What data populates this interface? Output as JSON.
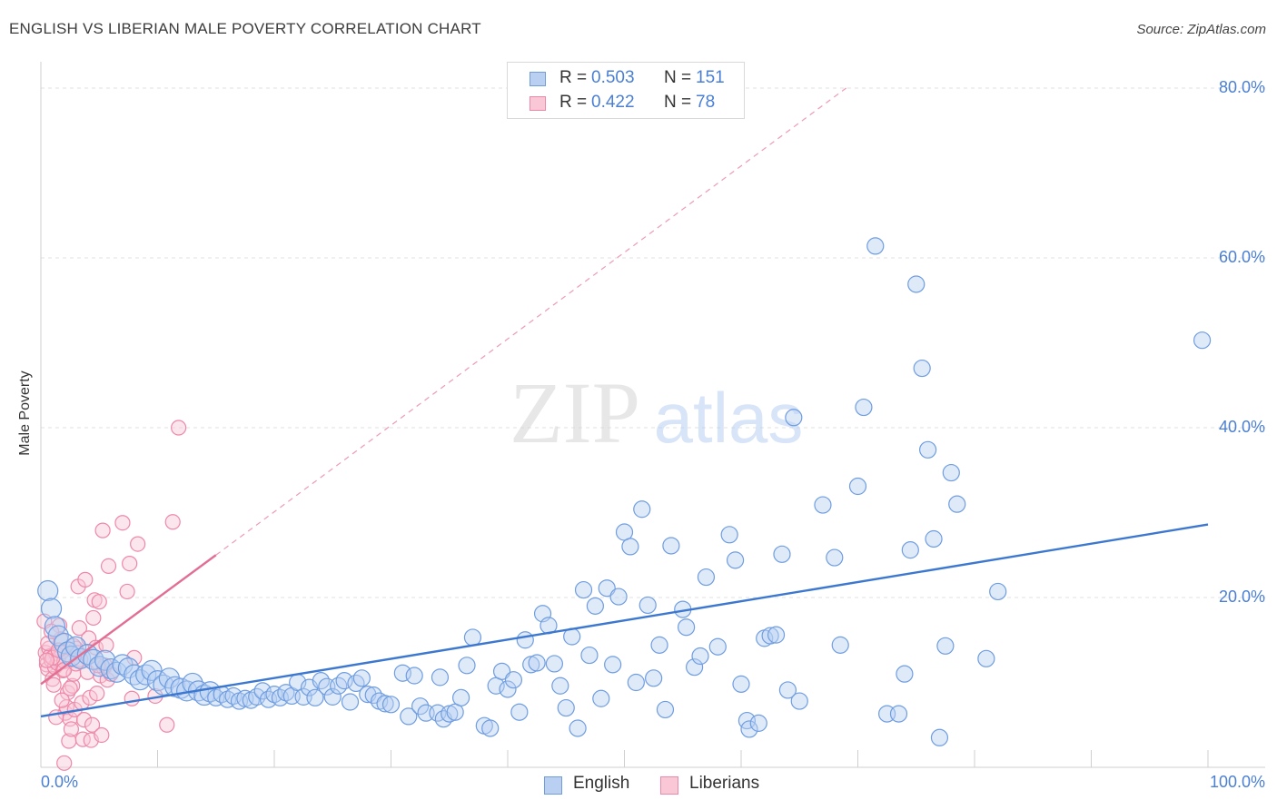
{
  "title": "ENGLISH VS LIBERIAN MALE POVERTY CORRELATION CHART",
  "source": "Source: ZipAtlas.com",
  "watermark": {
    "zip": "ZIP",
    "atlas": "atlas"
  },
  "stats": [
    {
      "label": "R =",
      "r": "0.503",
      "n_label": "N =",
      "n": "151",
      "color": "#6f9de0",
      "fill": "#b9d0f2"
    },
    {
      "label": "R =",
      "r": "0.422",
      "n_label": "N =",
      "n": "78",
      "color": "#ee88a8",
      "fill": "#f9c7d6"
    }
  ],
  "legend": [
    {
      "label": "English",
      "color": "#6f9de0",
      "fill": "#b9d0f2"
    },
    {
      "label": "Liberians",
      "color": "#ee88a8",
      "fill": "#f9c7d6"
    }
  ],
  "chart_data": {
    "type": "scatter",
    "title": "ENGLISH VS LIBERIAN MALE POVERTY CORRELATION CHART",
    "xlabel": "",
    "ylabel": "Male Poverty",
    "xlim": [
      0,
      100
    ],
    "ylim": [
      0,
      80
    ],
    "x_tick_labels": [
      {
        "value": 0,
        "label": "0.0%"
      },
      {
        "value": 100,
        "label": "100.0%"
      }
    ],
    "y_tick_labels": [
      {
        "value": 20,
        "label": "20.0%"
      },
      {
        "value": 40,
        "label": "40.0%"
      },
      {
        "value": 60,
        "label": "60.0%"
      },
      {
        "value": 80,
        "label": "80.0%"
      }
    ],
    "grid": "horizontal dashed",
    "series": [
      {
        "name": "English",
        "color": "#4a7fd4",
        "fill": "#b9d0f2",
        "trend": {
          "x": [
            0,
            100
          ],
          "y": [
            6.0,
            28.6
          ]
        },
        "points": [
          [
            0.6,
            20.8
          ],
          [
            0.9,
            18.7
          ],
          [
            1.2,
            16.6
          ],
          [
            1.5,
            15.5
          ],
          [
            2.0,
            14.6
          ],
          [
            2.3,
            13.6
          ],
          [
            2.6,
            13.1
          ],
          [
            3.0,
            14.2
          ],
          [
            3.4,
            12.8
          ],
          [
            4.0,
            13.3
          ],
          [
            4.5,
            12.7
          ],
          [
            5.0,
            11.9
          ],
          [
            5.5,
            12.6
          ],
          [
            6.0,
            11.6
          ],
          [
            6.5,
            11.2
          ],
          [
            7.0,
            12.1
          ],
          [
            7.5,
            11.7
          ],
          [
            8.0,
            10.9
          ],
          [
            8.5,
            10.3
          ],
          [
            9.0,
            10.9
          ],
          [
            9.5,
            11.4
          ],
          [
            10.0,
            10.2
          ],
          [
            10.5,
            9.7
          ],
          [
            11.0,
            10.5
          ],
          [
            11.5,
            9.5
          ],
          [
            12.0,
            9.3
          ],
          [
            12.5,
            9.0
          ],
          [
            13.0,
            9.9
          ],
          [
            13.5,
            9.0
          ],
          [
            14.0,
            8.5
          ],
          [
            14.5,
            8.9
          ],
          [
            15.0,
            8.2
          ],
          [
            15.5,
            8.6
          ],
          [
            16.0,
            8.0
          ],
          [
            16.5,
            8.4
          ],
          [
            17.0,
            7.8
          ],
          [
            17.5,
            8.1
          ],
          [
            18.0,
            7.9
          ],
          [
            18.5,
            8.3
          ],
          [
            19.0,
            9.0
          ],
          [
            19.5,
            8.0
          ],
          [
            20.0,
            8.6
          ],
          [
            20.5,
            8.2
          ],
          [
            21.0,
            8.8
          ],
          [
            21.5,
            8.4
          ],
          [
            22.0,
            10.0
          ],
          [
            22.5,
            8.3
          ],
          [
            23.0,
            9.4
          ],
          [
            23.5,
            8.2
          ],
          [
            24.0,
            10.2
          ],
          [
            24.5,
            9.5
          ],
          [
            25.0,
            8.3
          ],
          [
            25.5,
            9.6
          ],
          [
            26.0,
            10.2
          ],
          [
            26.5,
            7.7
          ],
          [
            27.0,
            9.9
          ],
          [
            27.5,
            10.5
          ],
          [
            28.0,
            8.6
          ],
          [
            28.5,
            8.5
          ],
          [
            29.0,
            7.8
          ],
          [
            29.5,
            7.5
          ],
          [
            30.0,
            7.4
          ],
          [
            31.0,
            11.1
          ],
          [
            31.5,
            6.0
          ],
          [
            32.0,
            10.8
          ],
          [
            32.5,
            7.2
          ],
          [
            33.0,
            6.4
          ],
          [
            34.0,
            6.4
          ],
          [
            34.2,
            10.6
          ],
          [
            34.5,
            5.7
          ],
          [
            35.0,
            6.3
          ],
          [
            35.5,
            6.5
          ],
          [
            36.0,
            8.2
          ],
          [
            36.5,
            12.0
          ],
          [
            37.0,
            15.3
          ],
          [
            38.0,
            4.9
          ],
          [
            38.5,
            4.6
          ],
          [
            39.0,
            9.6
          ],
          [
            39.5,
            11.3
          ],
          [
            40.0,
            9.2
          ],
          [
            40.5,
            10.3
          ],
          [
            41.0,
            6.5
          ],
          [
            41.5,
            15.0
          ],
          [
            42.0,
            12.1
          ],
          [
            42.5,
            12.3
          ],
          [
            43.0,
            18.1
          ],
          [
            43.5,
            16.7
          ],
          [
            44.0,
            12.2
          ],
          [
            44.5,
            9.6
          ],
          [
            45.0,
            7.0
          ],
          [
            45.5,
            15.4
          ],
          [
            46.0,
            4.6
          ],
          [
            46.5,
            20.9
          ],
          [
            47.0,
            13.2
          ],
          [
            47.5,
            19.0
          ],
          [
            48.0,
            8.1
          ],
          [
            48.5,
            21.1
          ],
          [
            49.0,
            12.1
          ],
          [
            49.5,
            20.1
          ],
          [
            50.0,
            27.7
          ],
          [
            50.5,
            26.0
          ],
          [
            51.0,
            10.0
          ],
          [
            51.5,
            30.4
          ],
          [
            52.0,
            19.1
          ],
          [
            52.5,
            10.5
          ],
          [
            53.0,
            14.4
          ],
          [
            53.5,
            6.8
          ],
          [
            54.0,
            26.1
          ],
          [
            55.0,
            18.6
          ],
          [
            55.3,
            16.5
          ],
          [
            56.0,
            11.8
          ],
          [
            56.5,
            13.1
          ],
          [
            57.0,
            22.4
          ],
          [
            58.0,
            14.2
          ],
          [
            59.0,
            27.4
          ],
          [
            59.5,
            24.4
          ],
          [
            60.0,
            9.8
          ],
          [
            60.5,
            5.5
          ],
          [
            60.7,
            4.5
          ],
          [
            61.5,
            5.2
          ],
          [
            62.0,
            15.2
          ],
          [
            62.5,
            15.5
          ],
          [
            63.0,
            15.6
          ],
          [
            63.5,
            25.1
          ],
          [
            64.0,
            9.1
          ],
          [
            64.5,
            41.2
          ],
          [
            65.0,
            7.8
          ],
          [
            67.0,
            30.9
          ],
          [
            68.0,
            24.7
          ],
          [
            68.5,
            14.4
          ],
          [
            70.0,
            33.1
          ],
          [
            70.5,
            42.4
          ],
          [
            71.5,
            61.4
          ],
          [
            72.5,
            6.3
          ],
          [
            73.5,
            6.3
          ],
          [
            74.0,
            11.0
          ],
          [
            74.5,
            25.6
          ],
          [
            75.0,
            56.9
          ],
          [
            75.5,
            47.0
          ],
          [
            76.0,
            37.4
          ],
          [
            76.5,
            26.9
          ],
          [
            77.0,
            3.5
          ],
          [
            77.5,
            14.3
          ],
          [
            78.0,
            34.7
          ],
          [
            78.5,
            31.0
          ],
          [
            81.0,
            12.8
          ],
          [
            82.0,
            20.7
          ],
          [
            99.5,
            50.3
          ]
        ]
      },
      {
        "name": "Liberians",
        "color": "#e36e94",
        "fill": "#f9c7d6",
        "trend": {
          "x": [
            0,
            15
          ],
          "y": [
            9.8,
            25.0
          ]
        },
        "trend_extension": {
          "x": [
            15,
            69
          ],
          "y": [
            25.0,
            80.0
          ]
        },
        "points": [
          [
            0.3,
            17.2
          ],
          [
            0.4,
            13.5
          ],
          [
            0.5,
            12.1
          ],
          [
            0.6,
            11.6
          ],
          [
            0.7,
            14.0
          ],
          [
            0.8,
            13.1
          ],
          [
            0.9,
            12.6
          ],
          [
            1.0,
            10.4
          ],
          [
            1.1,
            9.7
          ],
          [
            1.2,
            11.8
          ],
          [
            1.3,
            13.4
          ],
          [
            1.4,
            12.3
          ],
          [
            1.5,
            12.8
          ],
          [
            1.6,
            16.7
          ],
          [
            1.7,
            15.1
          ],
          [
            1.8,
            13.6
          ],
          [
            1.9,
            11.4
          ],
          [
            2.0,
            12.5
          ],
          [
            2.1,
            6.4
          ],
          [
            2.2,
            7.1
          ],
          [
            2.3,
            8.8
          ],
          [
            2.4,
            3.1
          ],
          [
            2.5,
            5.7
          ],
          [
            2.6,
            4.5
          ],
          [
            2.7,
            9.6
          ],
          [
            2.8,
            11.0
          ],
          [
            2.9,
            6.8
          ],
          [
            3.0,
            14.0
          ],
          [
            3.1,
            13.5
          ],
          [
            3.2,
            21.3
          ],
          [
            3.3,
            16.4
          ],
          [
            3.4,
            12.7
          ],
          [
            3.5,
            7.6
          ],
          [
            3.6,
            3.3
          ],
          [
            3.7,
            5.6
          ],
          [
            3.8,
            22.1
          ],
          [
            4.0,
            11.2
          ],
          [
            4.1,
            15.2
          ],
          [
            4.2,
            8.2
          ],
          [
            4.3,
            3.2
          ],
          [
            4.4,
            5.0
          ],
          [
            4.5,
            17.6
          ],
          [
            4.6,
            19.7
          ],
          [
            4.7,
            14.1
          ],
          [
            4.8,
            8.7
          ],
          [
            5.0,
            19.5
          ],
          [
            5.1,
            10.8
          ],
          [
            5.2,
            3.8
          ],
          [
            5.3,
            27.9
          ],
          [
            5.4,
            11.7
          ],
          [
            5.5,
            12.0
          ],
          [
            5.6,
            14.4
          ],
          [
            5.7,
            10.3
          ],
          [
            5.8,
            23.7
          ],
          [
            6.0,
            11.0
          ],
          [
            7.0,
            28.8
          ],
          [
            7.4,
            20.7
          ],
          [
            7.6,
            24.0
          ],
          [
            8.0,
            12.9
          ],
          [
            8.3,
            26.3
          ],
          [
            9.8,
            8.4
          ],
          [
            10.8,
            5.0
          ],
          [
            11.3,
            28.9
          ],
          [
            11.8,
            40.0
          ],
          [
            0.6,
            14.6
          ],
          [
            1.0,
            12.9
          ],
          [
            1.5,
            13.8
          ],
          [
            2.0,
            11.5
          ],
          [
            2.5,
            9.3
          ],
          [
            1.8,
            7.9
          ],
          [
            3.0,
            12.2
          ],
          [
            1.3,
            5.9
          ],
          [
            0.9,
            16.0
          ],
          [
            2.8,
            14.3
          ],
          [
            4.9,
            12.0
          ],
          [
            0.5,
            12.6
          ],
          [
            2.0,
            0.5
          ],
          [
            7.8,
            8.1
          ]
        ]
      }
    ]
  }
}
